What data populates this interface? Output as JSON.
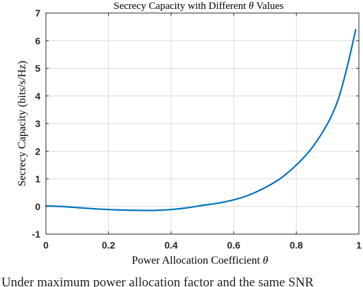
{
  "chart_data": {
    "type": "line",
    "title_prefix": "Secrecy Capacity with Different ",
    "title_symbol": "θ",
    "title_suffix": " Values",
    "xlabel_prefix": "Power Allocation Coefficient ",
    "xlabel_symbol": "θ",
    "ylabel": "Secrecy Capacity (bits/s/Hz)",
    "xlim": [
      0,
      1
    ],
    "ylim": [
      -1,
      7
    ],
    "xticks": [
      "0",
      "0.2",
      "0.4",
      "0.6",
      "0.8",
      "1"
    ],
    "yticks": [
      "-1",
      "0",
      "1",
      "2",
      "3",
      "4",
      "5",
      "6",
      "7"
    ],
    "grid": true,
    "line_color": "#0072BD",
    "series": [
      {
        "x": [
          0,
          0.05,
          0.1,
          0.15,
          0.2,
          0.25,
          0.3,
          0.35,
          0.4,
          0.45,
          0.5,
          0.55,
          0.6,
          0.65,
          0.7,
          0.75,
          0.8,
          0.85,
          0.9,
          0.93,
          0.95,
          0.97,
          0.98,
          0.99
        ],
        "y": [
          0.02,
          0.0,
          -0.04,
          -0.08,
          -0.11,
          -0.13,
          -0.14,
          -0.14,
          -0.11,
          -0.05,
          0.04,
          0.12,
          0.24,
          0.42,
          0.68,
          1.02,
          1.5,
          2.12,
          3.0,
          3.75,
          4.5,
          5.4,
          5.9,
          6.4
        ]
      }
    ]
  },
  "caption_text": "Under maximum power allocation factor and the same SNR"
}
